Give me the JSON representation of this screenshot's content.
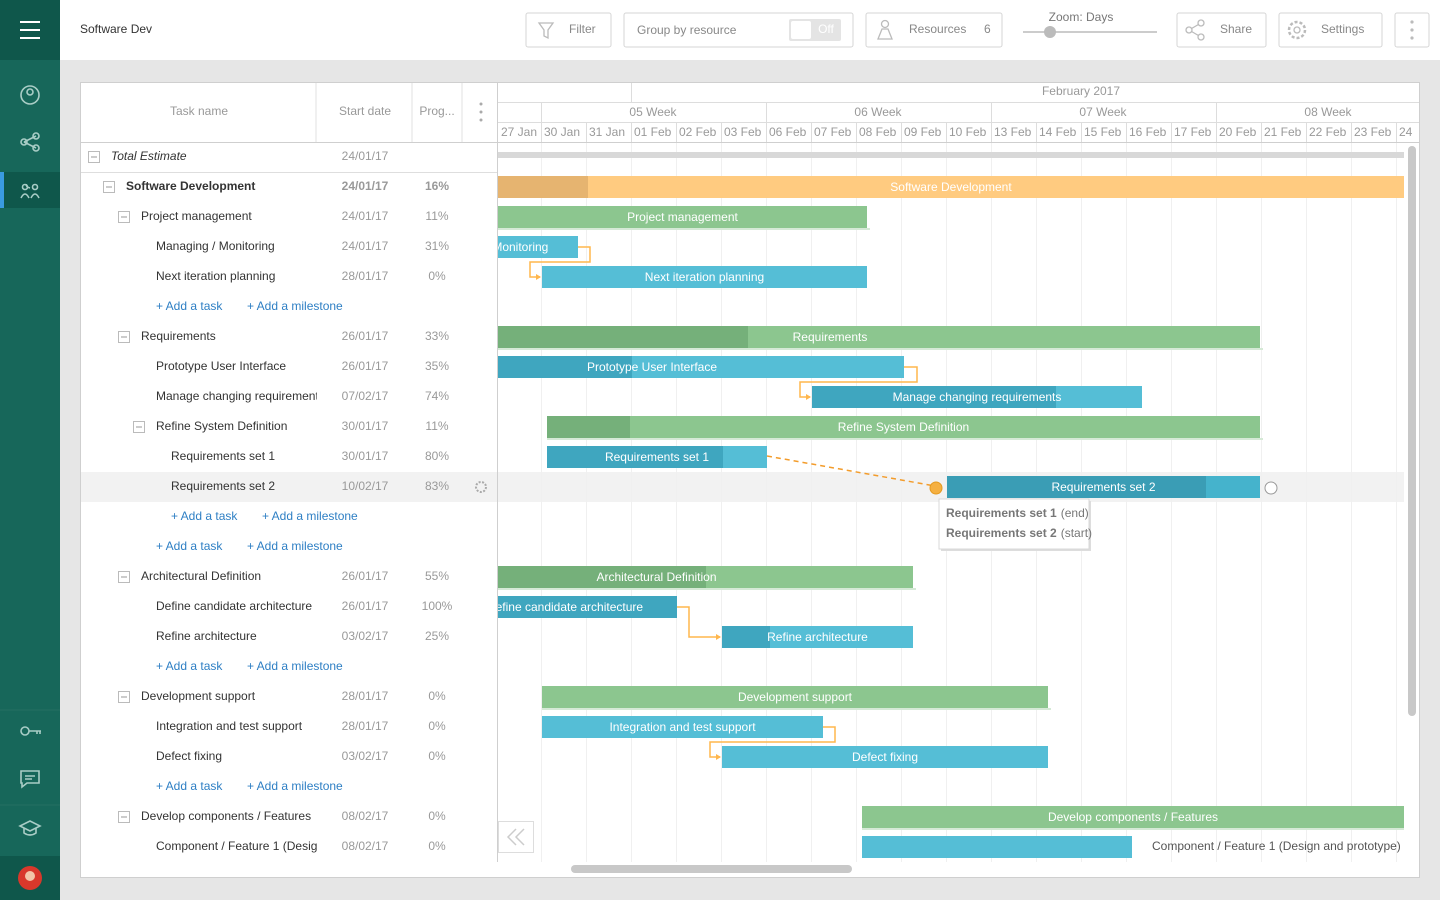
{
  "header": {
    "title": "Software Dev",
    "filter": "Filter",
    "group_by": "Group by resource",
    "toggle": "Off",
    "resources": "Resources",
    "resources_count": 6,
    "zoom": "Zoom: Days",
    "share": "Share",
    "settings": "Settings"
  },
  "grid": {
    "columns": [
      "Task name",
      "Start date",
      "Prog..."
    ],
    "rows": [
      {
        "name": "Total Estimate",
        "start": "24/01/17"
      },
      {
        "name": "Software Development",
        "start": "24/01/17",
        "progress": "16%"
      },
      {
        "name": "Project management",
        "start": "24/01/17",
        "progress": "11%"
      },
      {
        "name": "Managing / Monitoring",
        "start": "24/01/17",
        "progress": "31%"
      },
      {
        "name": "Next iteration planning",
        "start": "28/01/17",
        "progress": "0%"
      },
      {
        "add_task": "+ Add a task",
        "add_milestone": "+ Add a milestone"
      },
      {
        "name": "Requirements",
        "start": "26/01/17",
        "progress": "33%"
      },
      {
        "name": "Prototype User Interface",
        "start": "26/01/17",
        "progress": "35%"
      },
      {
        "name": "Manage changing requirement",
        "start": "07/02/17",
        "progress": "74%"
      },
      {
        "name": "Refine System Definition",
        "start": "30/01/17",
        "progress": "11%"
      },
      {
        "name": "Requirements set 1",
        "start": "30/01/17",
        "progress": "80%"
      },
      {
        "name": "Requirements set 2",
        "start": "10/02/17",
        "progress": "83%"
      },
      {
        "add_task": "+ Add a task",
        "add_milestone": "+ Add a milestone"
      },
      {
        "add_task": "+ Add a task",
        "add_milestone": "+ Add a milestone"
      },
      {
        "name": "Architectural Definition",
        "start": "26/01/17",
        "progress": "55%"
      },
      {
        "name": "Define candidate architecture",
        "start": "26/01/17",
        "progress": "100%"
      },
      {
        "name": "Refine architecture",
        "start": "03/02/17",
        "progress": "25%"
      },
      {
        "add_task": "+ Add a task",
        "add_milestone": "+ Add a milestone"
      },
      {
        "name": "Development support",
        "start": "28/01/17",
        "progress": "0%"
      },
      {
        "name": "Integration and test support",
        "start": "28/01/17",
        "progress": "0%"
      },
      {
        "name": "Defect fixing",
        "start": "03/02/17",
        "progress": "0%"
      },
      {
        "add_task": "+ Add a task",
        "add_milestone": "+ Add a milestone"
      },
      {
        "name": "Develop components / Features",
        "start": "08/02/17",
        "progress": "0%"
      },
      {
        "name": "Component / Feature 1 (Desig",
        "start": "08/02/17",
        "progress": "0%"
      }
    ]
  },
  "timeline": {
    "month": "February 2017",
    "weeks": [
      "05 Week",
      "06 Week",
      "07 Week",
      "08 Week"
    ],
    "days": [
      "27 Jan",
      "30 Jan",
      "31 Jan",
      "01 Feb",
      "02 Feb",
      "03 Feb",
      "06 Feb",
      "07 Feb",
      "08 Feb",
      "09 Feb",
      "10 Feb",
      "13 Feb",
      "14 Feb",
      "15 Feb",
      "16 Feb",
      "17 Feb",
      "20 Feb",
      "21 Feb",
      "22 Feb",
      "23 Feb",
      "24"
    ],
    "bars": [
      "Software Development",
      "Project management",
      "Managing / Monitoring",
      "Next iteration planning",
      "Requirements",
      "Prototype User Interface",
      "Manage changing requirements",
      "Refine System Definition",
      "Requirements set 1",
      "Requirements set 2",
      "Architectural Definition",
      "Define candidate architecture",
      "Refine architecture",
      "Development support",
      "Integration and test support",
      "Defect fixing",
      "Develop components / Features",
      "Component / Feature 1 (Design and prototype)"
    ],
    "tooltip": {
      "from_task": "Requirements set 1",
      "from_point": "(end)",
      "to_task": "Requirements set 2",
      "to_point": "(start)"
    }
  }
}
